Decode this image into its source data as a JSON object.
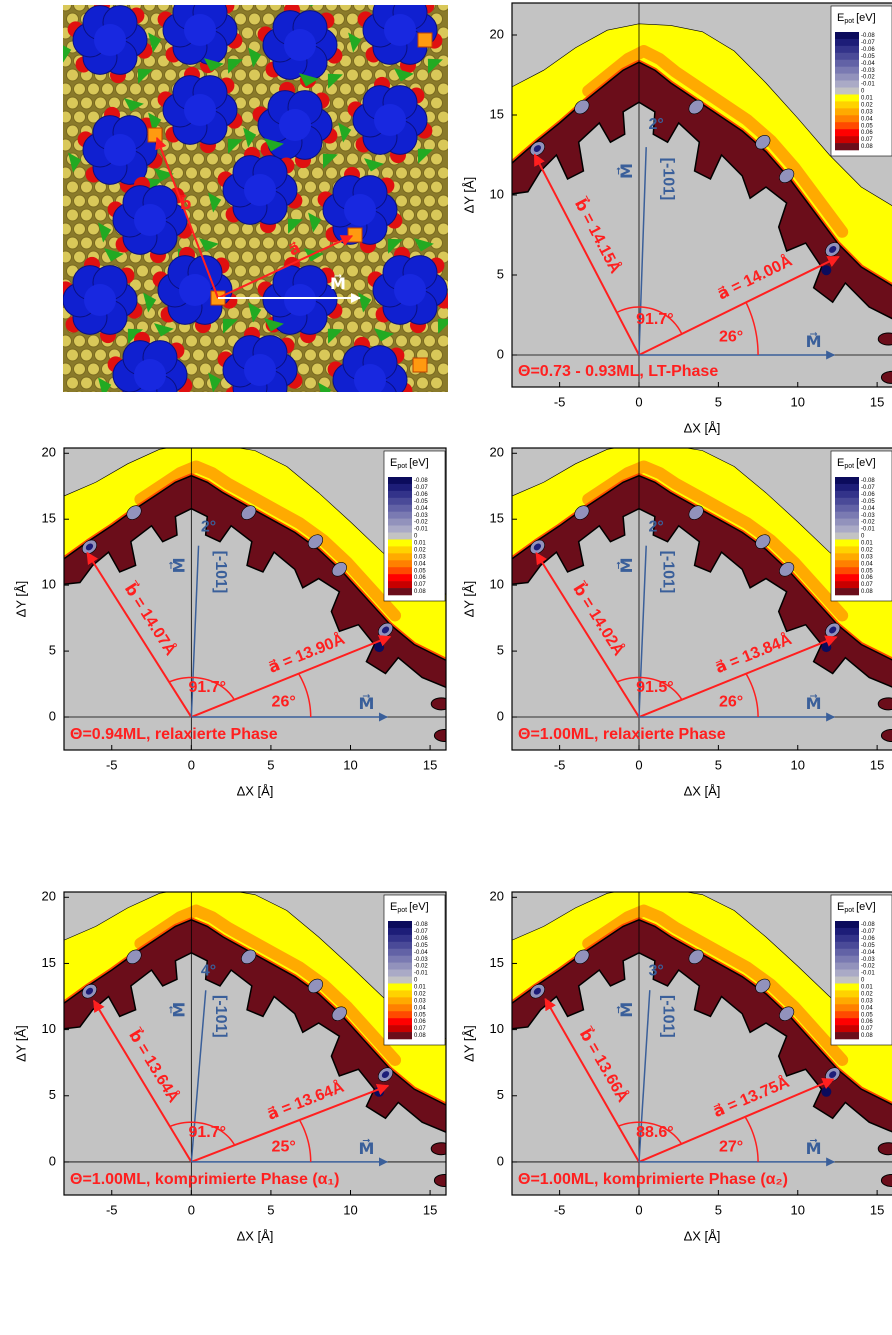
{
  "image_panel": {
    "b": "b⃗",
    "a": "a⃗",
    "m": "M⃗"
  },
  "chart_data": [
    {
      "type": "contour",
      "xlabel": "ΔX [Å]",
      "ylabel": "ΔY [Å]",
      "xlim": [
        -8,
        16
      ],
      "ylim": [
        -2,
        22
      ],
      "xticks": [
        -5,
        0,
        5,
        10,
        15
      ],
      "yticks": [
        0,
        5,
        10,
        15,
        20
      ],
      "colorbar": {
        "title": "E",
        "subscript": "pot",
        "unit": "[eV]",
        "levels": [
          -0.08,
          -0.07,
          -0.06,
          -0.05,
          -0.04,
          -0.03,
          -0.02,
          -0.01,
          0,
          0.01,
          0.02,
          0.03,
          0.04,
          0.05,
          0.06,
          0.07,
          0.08
        ],
        "colors": [
          "#0b0b5c",
          "#1d1d78",
          "#33338a",
          "#4a4a98",
          "#6262a6",
          "#7a7ab2",
          "#9292bc",
          "#aaaac6",
          "#c3c3c3",
          "#ffff00",
          "#ffd200",
          "#ffaa00",
          "#ff8000",
          "#ff4a00",
          "#ff0000",
          "#c80000",
          "#6b0d1a"
        ]
      },
      "a_length": 14.0,
      "b_length": 14.15,
      "a_angle": 26,
      "gamma": 91.7,
      "m_tilt": 2,
      "labels": {
        "a": "a⃗ = 14.00Å",
        "b": "b⃗ = 14.15Å",
        "gamma": "91.7°",
        "a_angle": "26°",
        "m_tilt": "2°",
        "direction": "[-101]",
        "m": "M⃗",
        "caption": "Θ=0.73 - 0.93ML, LT-Phase"
      }
    },
    {
      "type": "contour",
      "xlabel": "ΔX [Å]",
      "ylabel": "ΔY [Å]",
      "xlim": [
        -8,
        16
      ],
      "ylim": [
        -2.5,
        20.4
      ],
      "xticks": [
        -5,
        0,
        5,
        10,
        15
      ],
      "yticks": [
        0,
        5,
        10,
        15,
        20
      ],
      "colorbar": {
        "title": "E",
        "subscript": "pot",
        "unit": "[eV]",
        "levels": [
          -0.08,
          -0.07,
          -0.06,
          -0.05,
          -0.04,
          -0.03,
          -0.02,
          -0.01,
          0,
          0.01,
          0.02,
          0.03,
          0.04,
          0.05,
          0.06,
          0.07,
          0.08
        ],
        "colors": [
          "#0b0b5c",
          "#1d1d78",
          "#33338a",
          "#4a4a98",
          "#6262a6",
          "#7a7ab2",
          "#9292bc",
          "#aaaac6",
          "#c3c3c3",
          "#ffff00",
          "#ffd200",
          "#ffaa00",
          "#ff8000",
          "#ff4a00",
          "#ff0000",
          "#c80000",
          "#6b0d1a"
        ]
      },
      "a_length": 13.9,
      "b_length": 14.07,
      "a_angle": 26,
      "gamma": 91.7,
      "m_tilt": 2,
      "labels": {
        "a": "a⃗ = 13.90Å",
        "b": "b⃗ = 14.07Å",
        "gamma": "91.7°",
        "a_angle": "26°",
        "m_tilt": "2°",
        "direction": "[-101]",
        "m": "M⃗",
        "caption": "Θ=0.94ML, relaxierte Phase"
      }
    },
    {
      "type": "contour",
      "xlabel": "ΔX [Å]",
      "ylabel": "ΔY [Å]",
      "xlim": [
        -8,
        16
      ],
      "ylim": [
        -2.5,
        20.4
      ],
      "xticks": [
        -5,
        0,
        5,
        10,
        15
      ],
      "yticks": [
        0,
        5,
        10,
        15,
        20
      ],
      "colorbar": {
        "title": "E",
        "subscript": "pot",
        "unit": "[eV]",
        "levels": [
          -0.08,
          -0.07,
          -0.06,
          -0.05,
          -0.04,
          -0.03,
          -0.02,
          -0.01,
          0,
          0.01,
          0.02,
          0.03,
          0.04,
          0.05,
          0.06,
          0.07,
          0.08
        ],
        "colors": [
          "#0b0b5c",
          "#1d1d78",
          "#33338a",
          "#4a4a98",
          "#6262a6",
          "#7a7ab2",
          "#9292bc",
          "#aaaac6",
          "#c3c3c3",
          "#ffff00",
          "#ffd200",
          "#ffaa00",
          "#ff8000",
          "#ff4a00",
          "#ff0000",
          "#c80000",
          "#6b0d1a"
        ]
      },
      "a_length": 13.84,
      "b_length": 14.02,
      "a_angle": 26,
      "gamma": 91.5,
      "m_tilt": 2,
      "labels": {
        "a": "a⃗ = 13.84Å",
        "b": "b⃗ = 14.02Å",
        "gamma": "91.5°",
        "a_angle": "26°",
        "m_tilt": "2°",
        "direction": "[-101]",
        "m": "M⃗",
        "caption": "Θ=1.00ML, relaxierte Phase"
      }
    },
    {
      "type": "contour",
      "xlabel": "ΔX [Å]",
      "ylabel": "ΔY [Å]",
      "xlim": [
        -8,
        16
      ],
      "ylim": [
        -2.5,
        20.4
      ],
      "xticks": [
        -5,
        0,
        5,
        10,
        15
      ],
      "yticks": [
        0,
        5,
        10,
        15,
        20
      ],
      "colorbar": {
        "title": "E",
        "subscript": "pot",
        "unit": "[eV]",
        "levels": [
          -0.08,
          -0.07,
          -0.06,
          -0.05,
          -0.04,
          -0.03,
          -0.02,
          -0.01,
          0,
          0.01,
          0.02,
          0.03,
          0.04,
          0.05,
          0.06,
          0.07,
          0.08
        ],
        "colors": [
          "#0b0b5c",
          "#1d1d78",
          "#33338a",
          "#4a4a98",
          "#6262a6",
          "#7a7ab2",
          "#9292bc",
          "#aaaac6",
          "#c3c3c3",
          "#ffff00",
          "#ffd200",
          "#ffaa00",
          "#ff8000",
          "#ff4a00",
          "#ff0000",
          "#c80000",
          "#6b0d1a"
        ]
      },
      "a_length": 13.64,
      "b_length": 13.64,
      "a_angle": 25,
      "gamma": 91.7,
      "m_tilt": 4,
      "labels": {
        "a": "a⃗ = 13.64Å",
        "b": "b⃗ = 13.64Å",
        "gamma": "91.7°",
        "a_angle": "25°",
        "m_tilt": "4°",
        "direction": "[-101]",
        "m": "M⃗",
        "caption": "Θ=1.00ML, komprimierte Phase (α₁)"
      }
    },
    {
      "type": "contour",
      "xlabel": "ΔX [Å]",
      "ylabel": "ΔY [Å]",
      "xlim": [
        -8,
        16
      ],
      "ylim": [
        -2.5,
        20.4
      ],
      "xticks": [
        -5,
        0,
        5,
        10,
        15
      ],
      "yticks": [
        0,
        5,
        10,
        15,
        20
      ],
      "colorbar": {
        "title": "E",
        "subscript": "pot",
        "unit": "[eV]",
        "levels": [
          -0.08,
          -0.07,
          -0.06,
          -0.05,
          -0.04,
          -0.03,
          -0.02,
          -0.01,
          0,
          0.01,
          0.02,
          0.03,
          0.04,
          0.05,
          0.06,
          0.07,
          0.08
        ],
        "colors": [
          "#0b0b5c",
          "#1d1d78",
          "#33338a",
          "#4a4a98",
          "#6262a6",
          "#7a7ab2",
          "#9292bc",
          "#aaaac6",
          "#c3c3c3",
          "#ffff00",
          "#ffd200",
          "#ffaa00",
          "#ff8000",
          "#ff4a00",
          "#ff0000",
          "#c80000",
          "#6b0d1a"
        ]
      },
      "a_length": 13.75,
      "b_length": 13.66,
      "a_angle": 27,
      "gamma": 88.6,
      "m_tilt": 3,
      "labels": {
        "a": "a⃗ = 13.75Å",
        "b": "b⃗ = 13.66Å",
        "gamma": "88.6°",
        "a_angle": "27°",
        "m_tilt": "3°",
        "direction": "[-101]",
        "m": "M⃗",
        "caption": "Θ=1.00ML, komprimierte Phase (α₂)"
      }
    }
  ]
}
